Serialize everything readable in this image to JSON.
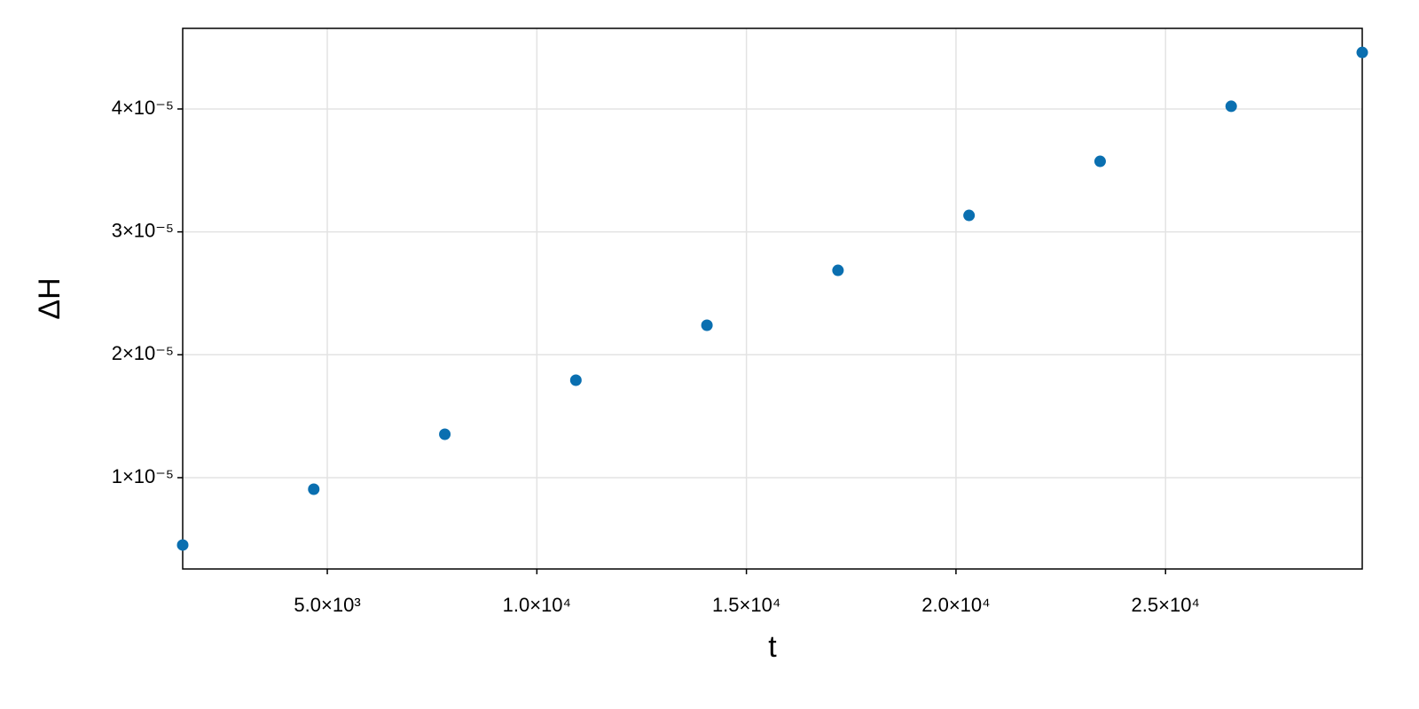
{
  "chart_data": {
    "type": "scatter",
    "x_label": "t",
    "y_label": "ΔH",
    "x": [
      1550,
      4677,
      7804,
      10931,
      14058,
      17185,
      20312,
      23439,
      26566,
      29693
    ],
    "series": [
      {
        "color": "#0a6fb0",
        "values": [
          4.52e-06,
          9.06e-06,
          1.353e-05,
          1.793e-05,
          2.24e-05,
          2.687e-05,
          3.134e-05,
          3.574e-05,
          4.022e-05,
          4.46e-05
        ]
      }
    ],
    "xlim": [
      1550,
      29693
    ],
    "ylim": [
      2.57e-06,
      4.656e-05
    ],
    "xticks": [
      {
        "value": 5000,
        "label": "5.0×10³"
      },
      {
        "value": 10000,
        "label": "1.0×10⁴"
      },
      {
        "value": 15000,
        "label": "1.5×10⁴"
      },
      {
        "value": 20000,
        "label": "2.0×10⁴"
      },
      {
        "value": 25000,
        "label": "2.5×10⁴"
      }
    ],
    "yticks": [
      {
        "value": 1e-05,
        "label": "1×10⁻⁵"
      },
      {
        "value": 2e-05,
        "label": "2×10⁻⁵"
      },
      {
        "value": 3e-05,
        "label": "3×10⁻⁵"
      },
      {
        "value": 4e-05,
        "label": "4×10⁻⁵"
      }
    ],
    "grid": true
  }
}
